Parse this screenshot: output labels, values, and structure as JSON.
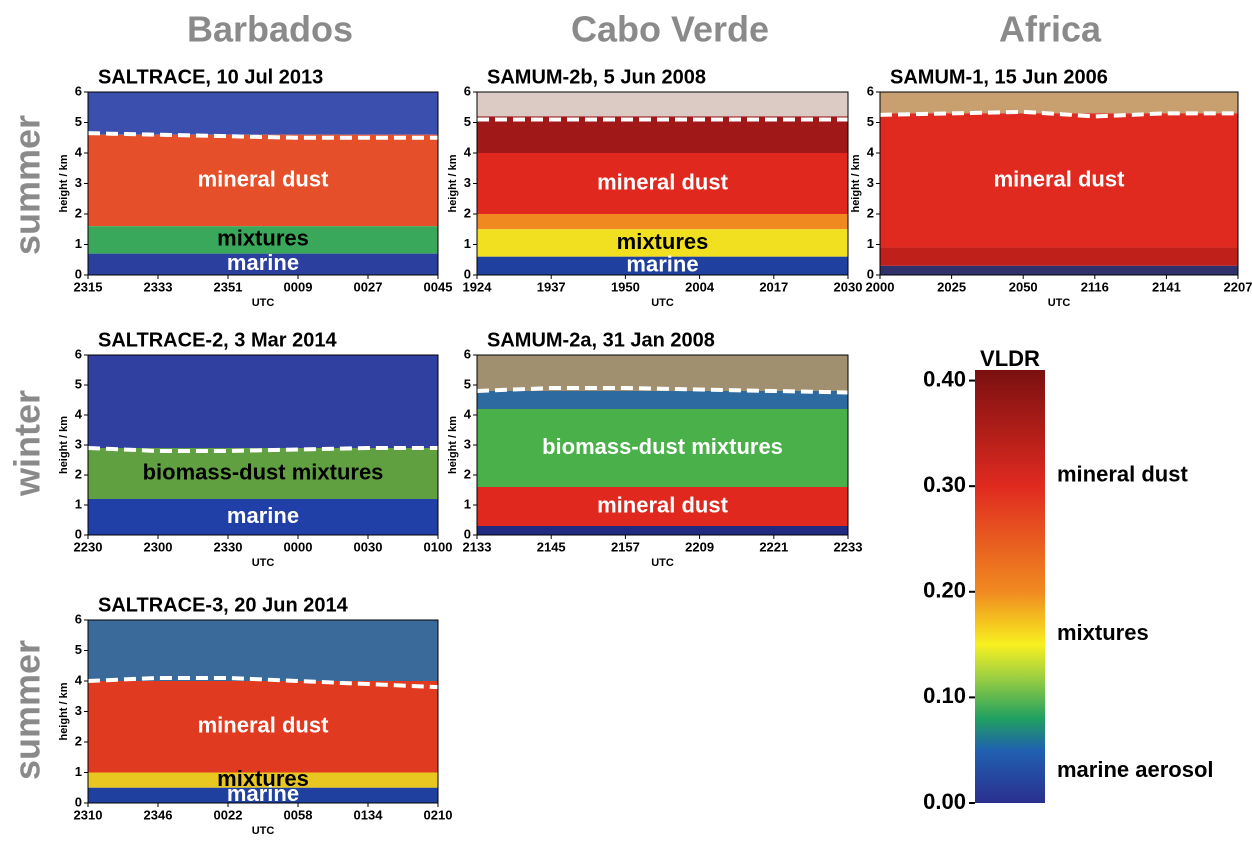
{
  "column_headers": [
    "Barbados",
    "Cabo Verde",
    "Africa"
  ],
  "row_labels": [
    "summer",
    "winter",
    "summer"
  ],
  "chart_data": [
    {
      "type": "heatmap",
      "title": "SALTRACE, 10 Jul 2013",
      "xlabel": "UTC",
      "ylabel": "height / km",
      "categories": [
        "2315",
        "2333",
        "2351",
        "0009",
        "0027",
        "0045"
      ],
      "ylim": [
        0,
        6
      ],
      "yticks": [
        0,
        1,
        2,
        3,
        4,
        5,
        6
      ],
      "boundary": [
        4.65,
        4.6,
        4.55,
        4.5,
        4.5,
        4.5
      ],
      "layers": [
        {
          "bottom": 4.6,
          "top": 6,
          "color": "#3b4fae"
        },
        {
          "name": "mineral dust",
          "bottom": 1.6,
          "top": 4.6,
          "color": "#e5502a",
          "label_color": "#ffffff"
        },
        {
          "name": "mixtures",
          "bottom": 0.7,
          "top": 1.6,
          "color": "#3aa85a",
          "label_color": "#000000"
        },
        {
          "name": "marine",
          "bottom": 0,
          "top": 0.7,
          "color": "#2a3f9e",
          "label_color": "#ffffff"
        }
      ]
    },
    {
      "type": "heatmap",
      "title": "SAMUM-2b, 5 Jun 2008",
      "xlabel": "UTC",
      "ylabel": "height / km",
      "categories": [
        "1924",
        "1937",
        "1950",
        "2004",
        "2017",
        "2030"
      ],
      "ylim": [
        0,
        6
      ],
      "yticks": [
        0,
        1,
        2,
        3,
        4,
        5,
        6
      ],
      "boundary": [
        5.1,
        5.1,
        5.1,
        5.1,
        5.1,
        5.1
      ],
      "layers": [
        {
          "bottom": 5.2,
          "top": 6,
          "color": "#dccbc4"
        },
        {
          "bottom": 4.0,
          "top": 5.2,
          "color": "#a01818"
        },
        {
          "name": "mineral dust",
          "bottom": 2.0,
          "top": 4.0,
          "color": "#e0281e",
          "label_color": "#ffffff"
        },
        {
          "bottom": 1.5,
          "top": 2.0,
          "color": "#f08a20"
        },
        {
          "name": "mixtures",
          "bottom": 0.6,
          "top": 1.5,
          "color": "#f0e020",
          "label_color": "#000000"
        },
        {
          "name": "marine",
          "bottom": 0,
          "top": 0.6,
          "color": "#2040a0",
          "label_color": "#ffffff"
        }
      ]
    },
    {
      "type": "heatmap",
      "title": "SAMUM-1, 15 Jun 2006",
      "xlabel": "UTC",
      "ylabel": "height / km",
      "categories": [
        "2000",
        "2025",
        "2050",
        "2116",
        "2141",
        "2207"
      ],
      "ylim": [
        0,
        6
      ],
      "yticks": [
        0,
        1,
        2,
        3,
        4,
        5,
        6
      ],
      "boundary": [
        5.25,
        5.3,
        5.35,
        5.2,
        5.3,
        5.3
      ],
      "layers": [
        {
          "bottom": 5.3,
          "top": 6,
          "color": "#c8a070"
        },
        {
          "name": "mineral dust",
          "bottom": 0.9,
          "top": 5.3,
          "color": "#e02a20",
          "label_color": "#ffffff"
        },
        {
          "bottom": 0.3,
          "top": 0.9,
          "color": "#c0201a"
        },
        {
          "bottom": 0,
          "top": 0.3,
          "color": "#30306a"
        }
      ]
    },
    {
      "type": "heatmap",
      "title": "SALTRACE-2, 3 Mar 2014",
      "xlabel": "UTC",
      "ylabel": "height / km",
      "categories": [
        "2230",
        "2300",
        "2330",
        "0000",
        "0030",
        "0100"
      ],
      "ylim": [
        0,
        6
      ],
      "yticks": [
        0,
        1,
        2,
        3,
        4,
        5,
        6
      ],
      "boundary": [
        2.9,
        2.8,
        2.8,
        2.85,
        2.9,
        2.9
      ],
      "layers": [
        {
          "bottom": 2.9,
          "top": 6,
          "color": "#3040a0"
        },
        {
          "name": "biomass-dust mixtures",
          "bottom": 1.2,
          "top": 2.9,
          "color": "#60a040",
          "label_color": "#000000"
        },
        {
          "name": "marine",
          "bottom": 0,
          "top": 1.2,
          "color": "#2040a8",
          "label_color": "#ffffff"
        }
      ]
    },
    {
      "type": "heatmap",
      "title": "SAMUM-2a, 31 Jan 2008",
      "xlabel": "UTC",
      "ylabel": "height / km",
      "categories": [
        "2133",
        "2145",
        "2157",
        "2209",
        "2221",
        "2233"
      ],
      "ylim": [
        0,
        6
      ],
      "yticks": [
        0,
        1,
        2,
        3,
        4,
        5,
        6
      ],
      "boundary": [
        4.8,
        4.9,
        4.9,
        4.85,
        4.8,
        4.75
      ],
      "layers": [
        {
          "bottom": 4.8,
          "top": 6,
          "color": "#a09070"
        },
        {
          "bottom": 4.2,
          "top": 4.8,
          "color": "#2d6aa0"
        },
        {
          "name": "biomass-dust mixtures",
          "bottom": 1.6,
          "top": 4.2,
          "color": "#4ab04a",
          "label_color": "#ffffff"
        },
        {
          "name": "mineral dust",
          "bottom": 0.3,
          "top": 1.6,
          "color": "#e0281e",
          "label_color": "#ffffff"
        },
        {
          "bottom": 0,
          "top": 0.3,
          "color": "#202a80"
        }
      ]
    },
    {
      "type": "heatmap",
      "title": "SALTRACE-3, 20 Jun 2014",
      "xlabel": "UTC",
      "ylabel": "height / km",
      "categories": [
        "2310",
        "2346",
        "0022",
        "0058",
        "0134",
        "0210"
      ],
      "ylim": [
        0,
        6
      ],
      "yticks": [
        0,
        1,
        2,
        3,
        4,
        5,
        6
      ],
      "boundary": [
        4.0,
        4.1,
        4.1,
        4.0,
        3.9,
        3.8
      ],
      "layers": [
        {
          "bottom": 4.0,
          "top": 6,
          "color": "#3a6a9a"
        },
        {
          "name": "mineral dust",
          "bottom": 1.0,
          "top": 4.0,
          "color": "#e03a20",
          "label_color": "#ffffff"
        },
        {
          "name": "mixtures",
          "bottom": 0.5,
          "top": 1.0,
          "color": "#e8c820",
          "label_color": "#000000"
        },
        {
          "name": "marine",
          "bottom": 0,
          "top": 0.5,
          "color": "#2040a0",
          "label_color": "#ffffff"
        }
      ]
    },
    {
      "type": "colorbar",
      "title": "VLDR",
      "ylim": [
        0,
        0.41
      ],
      "yticks": [
        {
          "value": 0,
          "label": "0.00"
        },
        {
          "value": 0.1,
          "label": "0.10"
        },
        {
          "value": 0.2,
          "label": "0.20"
        },
        {
          "value": 0.3,
          "label": "0.30"
        },
        {
          "value": 0.4,
          "label": "0.40"
        }
      ],
      "stops": [
        {
          "value": 0,
          "color": "#2a2f8f"
        },
        {
          "value": 0.05,
          "color": "#2060b0"
        },
        {
          "value": 0.08,
          "color": "#20a060"
        },
        {
          "value": 0.12,
          "color": "#a0d040"
        },
        {
          "value": 0.15,
          "color": "#f8f020"
        },
        {
          "value": 0.2,
          "color": "#f08a20"
        },
        {
          "value": 0.3,
          "color": "#e02a20"
        },
        {
          "value": 0.41,
          "color": "#7a1010"
        }
      ],
      "annotations": [
        {
          "text": "mineral dust",
          "value": 0.31
        },
        {
          "text": "mixtures",
          "value": 0.16
        },
        {
          "text": "marine aerosol",
          "value": 0.03
        }
      ]
    }
  ]
}
